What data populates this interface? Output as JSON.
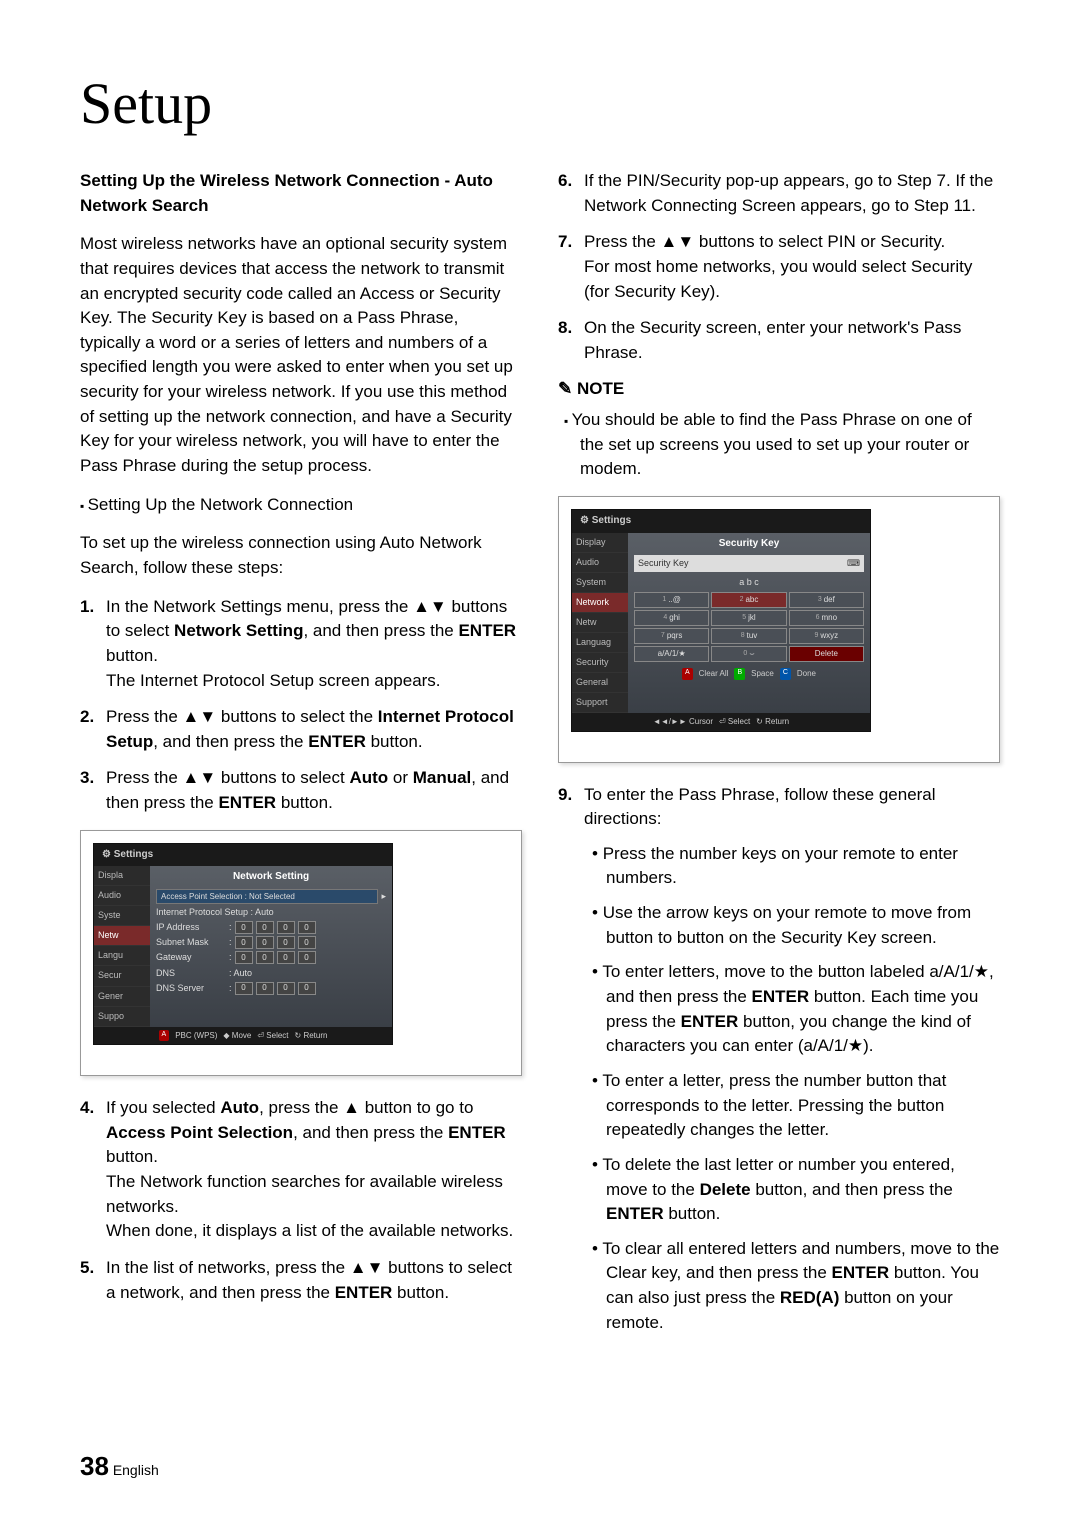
{
  "title": "Setup",
  "left": {
    "h1": "Setting Up the Wireless Network Connection - Auto Network Search",
    "intro": "Most wireless networks have an optional security system that requires devices that access the network to transmit an encrypted security code called an Access or Security Key. The Security Key is based on a Pass Phrase, typically a word or a series of letters and numbers of a specified length you were asked to enter when you set up security for your wireless network. If you use this method of setting up the network connection, and have a Security Key for your wireless network, you will have to enter the Pass Phrase during the setup process.",
    "sub1": "Setting Up the Network Connection",
    "sub1_text": "To set up the wireless connection using Auto Network Search, follow these steps:",
    "steps": {
      "s1": "In the Network Settings menu, press the ▲▼ buttons to select <b>Network Setting</b>, and then press the <b>ENTER</b> button.<br>The Internet Protocol Setup screen appears.",
      "s2": "Press the ▲▼ buttons to select the <b>Internet Protocol Setup</b>, and then press the <b>ENTER</b> button.",
      "s3": "Press the ▲▼ buttons to select <b>Auto</b> or <b>Manual</b>, and then press the <b>ENTER</b> button.",
      "s4": "If you selected <b>Auto</b>, press the ▲ button to go to <b>Access Point Selection</b>, and then press the <b>ENTER</b> button.<br>The Network function searches for available wireless networks.<br>When done, it displays a list of the available networks.",
      "s5": "In the list of networks, press the ▲▼ buttons to select a network, and then press the <b>ENTER</b> button."
    }
  },
  "right": {
    "steps": {
      "s6": "If the PIN/Security pop-up appears, go to Step 7. If the Network Connecting Screen appears, go to Step 11.",
      "s7": "Press the ▲▼ buttons to select PIN or Security.<br>For most home networks, you would select Security (for Security Key).",
      "s8": "On the Security screen, enter your network's Pass Phrase."
    },
    "note_label": "NOTE",
    "note_text": "You should be able to find the Pass Phrase on one of the set up screens you used to set up your router or modem.",
    "s9_intro": "To enter the Pass Phrase, follow these general directions:",
    "s9_bullets": [
      "Press the number keys on your remote to enter numbers.",
      "Use the arrow keys on your remote to move from button to button on the Security Key screen.",
      "To enter letters, move to the button labeled a/A/1/★, and then press the <b>ENTER</b> button. Each time you press the <b>ENTER</b> button, you change the kind of characters you can enter (a/A/1/★).",
      "To enter a letter, press the number button that corresponds to the letter. Pressing the button repeatedly changes the letter.",
      "To delete the last letter or number you entered, move to the <b>Delete</b> button, and then press the <b>ENTER</b> button.",
      "To clear all entered letters and numbers, move to the Clear key, and then press the <b>ENTER</b> button. You can also just press the <b>RED(A)</b> button on your remote."
    ]
  },
  "tv1": {
    "header": "Settings",
    "title": "Network Setting",
    "side": [
      "Displa",
      "Audio",
      "Syste",
      "Netw",
      "Langu",
      "Secur",
      "Gener",
      "Suppo"
    ],
    "rows": {
      "aps": "Access Point Selection : Not Selected",
      "ips": "Internet Protocol Setup : Auto",
      "ip": "IP Address",
      "sm": "Subnet Mask",
      "gw": "Gateway",
      "dns": "DNS",
      "dns_val": ": Auto",
      "dnss": "DNS Server"
    },
    "foot": {
      "a": "A",
      "pbc": "PBC (WPS)",
      "move": "◆ Move",
      "select": "⏎ Select",
      "return": "↻ Return"
    }
  },
  "tv2": {
    "header": "Settings",
    "title": "Security Key",
    "side": [
      "Display",
      "Audio",
      "System",
      "Network",
      "Netw",
      "Languag",
      "Security",
      "General",
      "Support"
    ],
    "input_placeholder": "Security Key",
    "abc": "a  b  c",
    "keys": [
      [
        "1",
        "..@"
      ],
      [
        "2",
        "abc"
      ],
      [
        "3",
        "def"
      ],
      [
        "4",
        "ghi"
      ],
      [
        "5",
        "jkl"
      ],
      [
        "6",
        "mno"
      ],
      [
        "7",
        "pqrs"
      ],
      [
        "8",
        "tuv"
      ],
      [
        "9",
        "wxyz"
      ],
      [
        "",
        "a/A/1/★"
      ],
      [
        "0",
        "⌣"
      ],
      [
        "",
        "Delete"
      ]
    ],
    "foot": {
      "a": "A",
      "clear": "Clear All",
      "b": "B",
      "space": "Space",
      "c": "C",
      "done": "Done",
      "cursor": "◄◄/►► Cursor",
      "select": "⏎ Select",
      "return": "↻ Return"
    }
  },
  "footer": {
    "page": "38",
    "lang": "English"
  }
}
